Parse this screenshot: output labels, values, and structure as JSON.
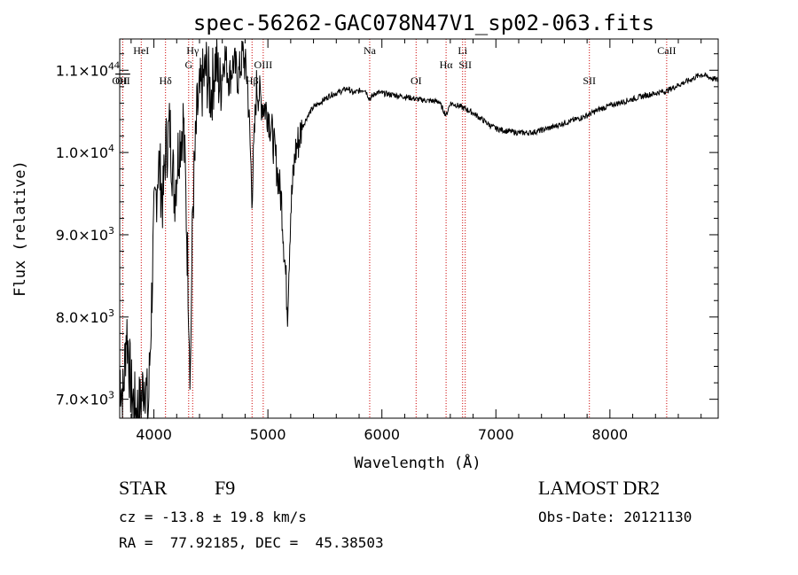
{
  "chart_data": {
    "type": "line",
    "title": "spec-56262-GAC078N47V1_sp02-063.fits",
    "xlabel": "Wavelength (Å)",
    "ylabel": "Flux (relative)",
    "xlim": [
      3700,
      8950
    ],
    "ylim": [
      6770,
      11380
    ],
    "x_ticks": [
      {
        "value": 4000,
        "label": "4000"
      },
      {
        "value": 5000,
        "label": "5000"
      },
      {
        "value": 6000,
        "label": "6000"
      },
      {
        "value": 7000,
        "label": "7000"
      },
      {
        "value": 8000,
        "label": "8000"
      }
    ],
    "y_ticks": [
      {
        "value": 7000,
        "mant": "7.0×10",
        "exp": "3"
      },
      {
        "value": 8000,
        "mant": "8.0×10",
        "exp": "3"
      },
      {
        "value": 9000,
        "mant": "9.0×10",
        "exp": "3"
      },
      {
        "value": 10000,
        "mant": "1.0×10",
        "exp": "4"
      },
      {
        "value": 11000,
        "mant": "1.1×10",
        "exp": "4"
      }
    ],
    "grid": false,
    "lines": [
      {
        "name": "OII",
        "x": 3727,
        "label": "OII",
        "row": "low",
        "overline": true
      },
      {
        "name": "HeI",
        "x": 3889,
        "label": "HeI",
        "row": "top"
      },
      {
        "name": "Hδ",
        "x": 4102,
        "label": "Hδ",
        "row": "low"
      },
      {
        "name": "Hγ",
        "x": 4340,
        "label": "Hγ",
        "row": "top"
      },
      {
        "name": "G",
        "x": 4305,
        "label": "G",
        "row": "mid"
      },
      {
        "name": "Hβ",
        "x": 4861,
        "label": "Hβ",
        "row": "low"
      },
      {
        "name": "OIII",
        "x": 4959,
        "label": "OIII",
        "row": "mid"
      },
      {
        "name": "Na",
        "x": 5893,
        "label": "Na",
        "row": "top"
      },
      {
        "name": "OI",
        "x": 6300,
        "label": "OI",
        "row": "low"
      },
      {
        "name": "Hα",
        "x": 6563,
        "label": "Hα",
        "row": "mid"
      },
      {
        "name": "Li",
        "x": 6708,
        "label": "Li",
        "row": "top"
      },
      {
        "name": "SII",
        "x": 6731,
        "label": "SII",
        "row": "mid"
      },
      {
        "name": "SII-b",
        "x": 7820,
        "label": "SII",
        "row": "low"
      },
      {
        "name": "CaII",
        "x": 8498,
        "label": "CaII",
        "row": "top"
      }
    ],
    "extra_labels": [
      {
        "text": "4",
        "x": 3675,
        "row": "mid"
      },
      {
        "text": "OH",
        "x": 3700,
        "row": "low"
      }
    ],
    "spectrum_anchors": [
      [
        3700,
        7350
      ],
      [
        3730,
        7000
      ],
      [
        3760,
        7900
      ],
      [
        3800,
        7100
      ],
      [
        3840,
        6850
      ],
      [
        3880,
        6900
      ],
      [
        3920,
        7300
      ],
      [
        3950,
        6800
      ],
      [
        3980,
        8200
      ],
      [
        4000,
        9100
      ],
      [
        4040,
        9900
      ],
      [
        4080,
        9400
      ],
      [
        4100,
        10000
      ],
      [
        4140,
        10300
      ],
      [
        4180,
        9500
      ],
      [
        4220,
        10100
      ],
      [
        4260,
        10400
      ],
      [
        4300,
        8500
      ],
      [
        4320,
        7300
      ],
      [
        4340,
        9300
      ],
      [
        4380,
        10500
      ],
      [
        4420,
        10800
      ],
      [
        4460,
        11000
      ],
      [
        4500,
        10700
      ],
      [
        4540,
        11100
      ],
      [
        4580,
        10800
      ],
      [
        4620,
        11200
      ],
      [
        4660,
        10900
      ],
      [
        4700,
        11100
      ],
      [
        4740,
        10900
      ],
      [
        4780,
        11200
      ],
      [
        4820,
        10900
      ],
      [
        4861,
        9500
      ],
      [
        4900,
        10800
      ],
      [
        4950,
        10600
      ],
      [
        5000,
        10500
      ],
      [
        5040,
        10200
      ],
      [
        5080,
        9800
      ],
      [
        5120,
        9400
      ],
      [
        5172,
        8100
      ],
      [
        5200,
        9300
      ],
      [
        5240,
        10000
      ],
      [
        5300,
        10300
      ],
      [
        5350,
        10450
      ],
      [
        5400,
        10550
      ],
      [
        5450,
        10600
      ],
      [
        5500,
        10650
      ],
      [
        5550,
        10700
      ],
      [
        5600,
        10720
      ],
      [
        5650,
        10750
      ],
      [
        5700,
        10780
      ],
      [
        5750,
        10720
      ],
      [
        5800,
        10750
      ],
      [
        5850,
        10770
      ],
      [
        5893,
        10650
      ],
      [
        5950,
        10730
      ],
      [
        6000,
        10720
      ],
      [
        6100,
        10700
      ],
      [
        6200,
        10680
      ],
      [
        6300,
        10650
      ],
      [
        6400,
        10630
      ],
      [
        6500,
        10620
      ],
      [
        6563,
        10450
      ],
      [
        6600,
        10600
      ],
      [
        6650,
        10580
      ],
      [
        6700,
        10550
      ],
      [
        6750,
        10520
      ],
      [
        6800,
        10480
      ],
      [
        6850,
        10430
      ],
      [
        6900,
        10380
      ],
      [
        6950,
        10330
      ],
      [
        7000,
        10290
      ],
      [
        7100,
        10260
      ],
      [
        7200,
        10240
      ],
      [
        7300,
        10240
      ],
      [
        7400,
        10270
      ],
      [
        7500,
        10310
      ],
      [
        7600,
        10360
      ],
      [
        7700,
        10400
      ],
      [
        7800,
        10450
      ],
      [
        7900,
        10520
      ],
      [
        8000,
        10570
      ],
      [
        8100,
        10610
      ],
      [
        8200,
        10650
      ],
      [
        8300,
        10690
      ],
      [
        8400,
        10720
      ],
      [
        8500,
        10750
      ],
      [
        8600,
        10820
      ],
      [
        8700,
        10880
      ],
      [
        8800,
        10950
      ],
      [
        8900,
        10900
      ],
      [
        8950,
        10880
      ]
    ]
  },
  "info": {
    "object_class": "STAR",
    "subclass": "F9",
    "survey": "LAMOST DR2",
    "cz": "cz = -13.8 ± 19.8 km/s",
    "obs_date": "Obs-Date: 20121130",
    "coords": "RA =  77.92185, DEC =  45.38503"
  }
}
